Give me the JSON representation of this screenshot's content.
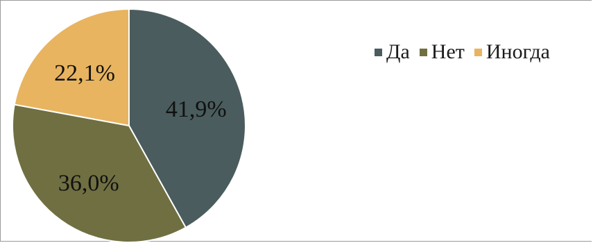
{
  "chart_data": {
    "type": "pie",
    "title": "",
    "categories": [
      "Да",
      "Нет",
      "Иногда"
    ],
    "values": [
      41.9,
      36.0,
      22.1
    ],
    "value_labels": [
      "41,9%",
      "36,0%",
      "22,1%"
    ],
    "unit": "%",
    "colors": [
      "#4a5c5d",
      "#6f6f42",
      "#e8b460"
    ],
    "start_angle_deg": 0,
    "direction": "clockwise",
    "legend_position": "top-right"
  }
}
